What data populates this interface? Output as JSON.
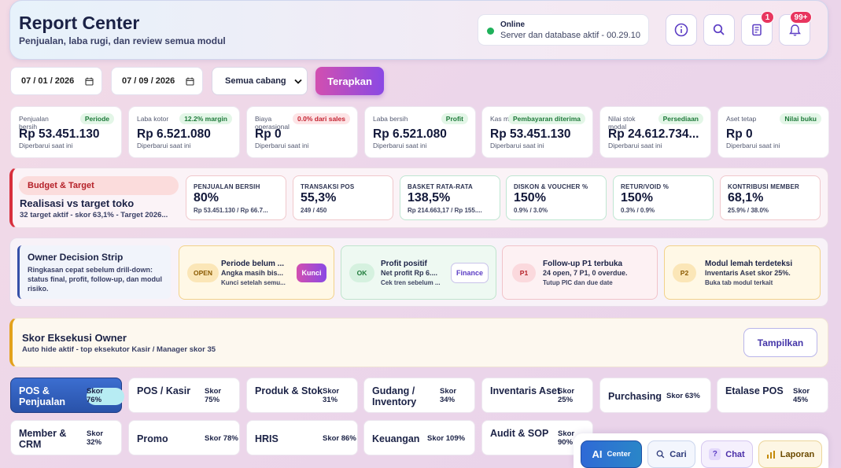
{
  "header": {
    "title": "Report Center",
    "subtitle": "Penjualan, laba rugi, dan review semua modul",
    "status_title": "Online",
    "status_sub": "Server dan database aktif - 00.29.10",
    "audit_badge": "1",
    "notif_badge": "99+"
  },
  "filters": {
    "date_from": "07 / 01 / 2026",
    "date_to": "07 / 09 / 2026",
    "branch": "Semua cabang",
    "apply": "Terapkan"
  },
  "kpis": [
    {
      "label": "Penjualan bersih",
      "tag": "Periode",
      "value": "Rp 53.451.130",
      "updated": "Diperbarui saat ini"
    },
    {
      "label": "Laba kotor",
      "tag": "12.2% margin",
      "value": "Rp 6.521.080",
      "updated": "Diperbarui saat ini"
    },
    {
      "label": "Biaya operasional",
      "tag": "0.0% dari sales",
      "value": "Rp 0",
      "updated": "Diperbarui saat ini"
    },
    {
      "label": "Laba bersih",
      "tag": "Profit",
      "value": "Rp 6.521.080",
      "updated": "Diperbarui saat ini"
    },
    {
      "label": "Kas masuk",
      "tag": "Pembayaran diterima",
      "value": "Rp 53.451.130",
      "updated": "Diperbarui saat ini"
    },
    {
      "label": "Nilai stok modal",
      "tag": "Persediaan",
      "value": "Rp 24.612.734...",
      "updated": "Diperbarui saat ini"
    },
    {
      "label": "Aset tetap",
      "tag": "Nilai buku",
      "value": "Rp 0",
      "updated": "Diperbarui saat ini"
    }
  ],
  "budget": {
    "tag": "Budget & Target",
    "title": "Realisasi vs target toko",
    "subtitle": "32 target aktif - skor 63,1% - Target 2026...",
    "metrics": [
      {
        "label": "PENJUALAN BERSIH",
        "value": "80%",
        "sub": "Rp 53.451.130 / Rp 66.7..."
      },
      {
        "label": "TRANSAKSI POS",
        "value": "55,3%",
        "sub": "249 / 450"
      },
      {
        "label": "BASKET RATA-RATA",
        "value": "138,5%",
        "sub": "Rp 214.663,17 / Rp 155...."
      },
      {
        "label": "DISKON & VOUCHER %",
        "value": "150%",
        "sub": "0.9% / 3.0%"
      },
      {
        "label": "RETUR/VOID %",
        "value": "150%",
        "sub": "0.3% / 0.9%"
      },
      {
        "label": "KONTRIBUSI MEMBER",
        "value": "68,1%",
        "sub": "25.9% / 38.0%"
      }
    ]
  },
  "owner": {
    "title": "Owner Decision Strip",
    "desc": "Ringkasan cepat sebelum drill-down: status final, profit, follow-up, dan modul risiko.",
    "cards": [
      {
        "pill": "OPEN",
        "title": "Periode belum ...",
        "sub": "Angka masih bis...",
        "note": "Kunci setelah semu...",
        "action": "Kunci"
      },
      {
        "pill": "OK",
        "title": "Profit positif",
        "sub": "Net profit Rp 6....",
        "note": "Cek tren sebelum ...",
        "action": "Finance"
      },
      {
        "pill": "P1",
        "title": "Follow-up P1 terbuka",
        "sub": "24 open, 7 P1, 0 overdue.",
        "note": "Tutup PIC dan due date"
      },
      {
        "pill": "P2",
        "title": "Modul lemah terdeteksi",
        "sub": "Inventaris Aset skor 25%.",
        "note": "Buka tab modul terkait"
      }
    ]
  },
  "score": {
    "title": "Skor Eksekusi Owner",
    "subtitle": "Auto hide aktif - top eksekutor Kasir / Manager skor 35",
    "button": "Tampilkan"
  },
  "modules": [
    {
      "name": "POS & Penjualan",
      "score": "Skor 76%",
      "active": true
    },
    {
      "name": "POS / Kasir",
      "score": "Skor 75%"
    },
    {
      "name": "Produk & Stok",
      "score": "Skor 31%"
    },
    {
      "name": "Gudang / Inventory",
      "score": "Skor 34%"
    },
    {
      "name": "Inventaris Aset",
      "score": "Skor 25%"
    },
    {
      "name": "Purchasing",
      "score": "Skor 63%"
    },
    {
      "name": "Etalase POS",
      "score": "Skor 45%"
    },
    {
      "name": "Member & CRM",
      "score": "Skor 32%"
    },
    {
      "name": "Promo",
      "score": "Skor 78%"
    },
    {
      "name": "HRIS",
      "score": "Skor 86%"
    },
    {
      "name": "Keuangan",
      "score": "Skor 109%"
    },
    {
      "name": "Audit & SOP",
      "score": "Skor 90%"
    }
  ],
  "bottom": {
    "ai_icon": "AI",
    "ai_label": "Center",
    "search": "Cari",
    "chat_icon": "?",
    "chat": "Chat",
    "report": "Laporan"
  },
  "colors": {
    "accent": "#8a49e4",
    "brand_pink": "#d24fb0",
    "danger": "#e8365f",
    "success": "#1fb15a"
  }
}
